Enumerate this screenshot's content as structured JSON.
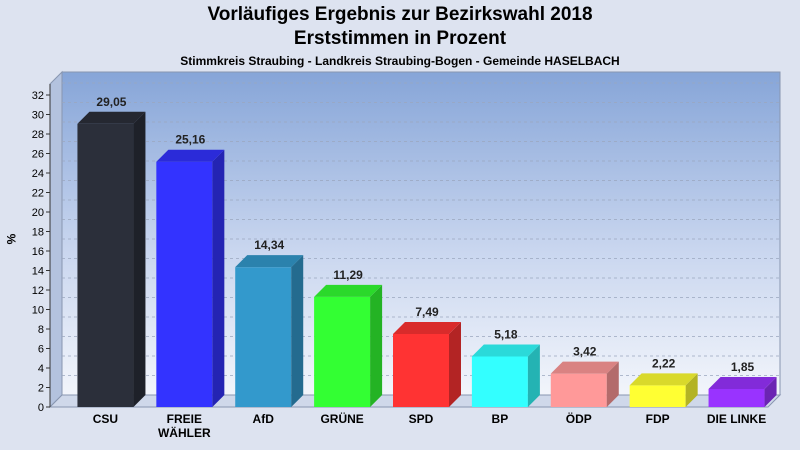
{
  "chart_data": {
    "type": "bar",
    "title": "Vorläufiges Ergebnis zur Bezirkswahl 2018",
    "subtitle": "Erststimmen in Prozent",
    "caption": "Stimmkreis Straubing - Landkreis Straubing-Bogen - Gemeinde HASELBACH",
    "ylabel": "%",
    "ylim": [
      0,
      33
    ],
    "yticks": [
      0,
      2,
      4,
      6,
      8,
      10,
      12,
      14,
      16,
      18,
      20,
      22,
      24,
      26,
      28,
      30,
      32
    ],
    "grid": true,
    "categories": [
      "CSU",
      "FREIE WÄHLER",
      "AfD",
      "GRÜNE",
      "SPD",
      "BP",
      "ÖDP",
      "FDP",
      "DIE LINKE"
    ],
    "category_lines": [
      [
        "CSU"
      ],
      [
        "FREIE",
        "WÄHLER"
      ],
      [
        "AfD"
      ],
      [
        "GRÜNE"
      ],
      [
        "SPD"
      ],
      [
        "BP"
      ],
      [
        "ÖDP"
      ],
      [
        "FDP"
      ],
      [
        "DIE LINKE"
      ]
    ],
    "values": [
      29.05,
      25.16,
      14.34,
      11.29,
      7.49,
      5.18,
      3.42,
      2.22,
      1.85
    ],
    "value_labels": [
      "29,05",
      "25,16",
      "14,34",
      "11,29",
      "7,49",
      "5,18",
      "3,42",
      "2,22",
      "1,85"
    ],
    "colors": [
      "#2b2f3a",
      "#3333ff",
      "#3399cc",
      "#33ff33",
      "#ff3333",
      "#33ffff",
      "#ff9999",
      "#ffff33",
      "#9933ff"
    ]
  }
}
